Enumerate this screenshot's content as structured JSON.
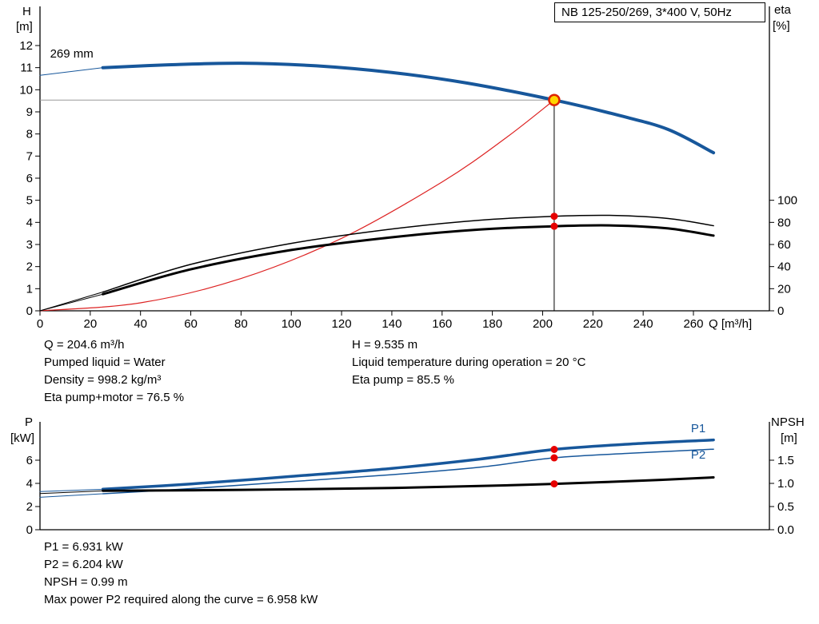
{
  "title_box": "NB 125-250/269, 3*400 V, 50Hz",
  "colors": {
    "curve_blue": "#17579b",
    "curve_black": "#000000",
    "system_red": "#dd2222",
    "marker_red": "#e60000",
    "duty_fill": "#ffd500",
    "duty_stroke": "#dd2200",
    "ref_gray": "#999999"
  },
  "readouts_top_left": [
    "Q = 204.6 m³/h",
    "Pumped liquid = Water",
    "Density = 998.2 kg/m³",
    "Eta pump+motor = 76.5 %"
  ],
  "readouts_top_right": [
    "H = 9.535 m",
    "Liquid temperature during operation = 20 °C",
    "Eta pump = 85.5 %"
  ],
  "readouts_bottom": [
    "P1 = 6.931 kW",
    "P2 = 6.204 kW",
    "NPSH = 0.99 m",
    "Max power P2 required along the curve = 6.958 kW"
  ],
  "chart_data": [
    {
      "type": "line",
      "name": "hq-eta-chart",
      "title": "NB 125-250/269, 3*400 V, 50Hz",
      "impeller_label": "269 mm",
      "x": {
        "label": "Q [m³/h]",
        "min": 0,
        "max": 290,
        "decimals": 0,
        "ticks": [
          0,
          20,
          40,
          60,
          80,
          100,
          120,
          140,
          160,
          180,
          200,
          220,
          240,
          260
        ]
      },
      "y_left": {
        "label_lines": [
          "H",
          "[m]"
        ],
        "min": 0,
        "max": 12,
        "decimals": 0,
        "ticks": [
          0,
          1,
          2,
          3,
          4,
          5,
          6,
          7,
          8,
          9,
          10,
          11,
          12
        ]
      },
      "y_right": {
        "label_lines": [
          "eta",
          "[%]"
        ],
        "min": 0,
        "max": 100,
        "decimals": 0,
        "ticks": [
          0,
          20,
          40,
          60,
          80,
          100
        ]
      },
      "duty_point": {
        "Q": "204.6 m³/h",
        "H": "9.535 m",
        "eta_pump": "85.5 %",
        "eta_pump_motor": "76.5 %"
      },
      "ref_lines": [
        {
          "type": "horizontal",
          "axis": "left",
          "value": 9.535,
          "to_q": 204.6,
          "color": "#999999",
          "width": 1
        },
        {
          "type": "vertical",
          "axis": "left",
          "q": 204.6,
          "to_value": 9.535,
          "color": "#000000",
          "width": 1
        }
      ],
      "series": [
        {
          "name": "system-curve",
          "axis": "left",
          "color": "#dd2222",
          "width": 1.2,
          "points": [
            [
              0,
              0
            ],
            [
              40,
              0.36
            ],
            [
              80,
              1.46
            ],
            [
              120,
              3.28
            ],
            [
              160,
              5.83
            ],
            [
              185,
              7.79
            ],
            [
              204.6,
              9.535
            ]
          ]
        },
        {
          "name": "pump-curve-leadin",
          "axis": "left",
          "color": "#17579b",
          "width": 1,
          "points": [
            [
              0,
              10.65
            ],
            [
              25,
              11.0
            ]
          ]
        },
        {
          "name": "pump-curve-269mm",
          "axis": "left",
          "color": "#17579b",
          "width": 4,
          "points": [
            [
              25,
              11.0
            ],
            [
              50,
              11.12
            ],
            [
              80,
              11.2
            ],
            [
              110,
              11.08
            ],
            [
              140,
              10.78
            ],
            [
              170,
              10.3
            ],
            [
              204.6,
              9.535
            ],
            [
              230,
              8.85
            ],
            [
              250,
              8.2
            ],
            [
              268,
              7.15
            ]
          ]
        },
        {
          "name": "eta-pump-leadin",
          "axis": "right",
          "color": "#000000",
          "width": 1,
          "points": [
            [
              0,
              0
            ],
            [
              25,
              17
            ]
          ]
        },
        {
          "name": "eta-pump-curve",
          "axis": "right",
          "color": "#000000",
          "width": 1.5,
          "points": [
            [
              25,
              17
            ],
            [
              60,
              42
            ],
            [
              100,
              61
            ],
            [
              140,
              74
            ],
            [
              175,
              82
            ],
            [
              204.6,
              85.5
            ],
            [
              228,
              86.3
            ],
            [
              250,
              83.5
            ],
            [
              268,
              77
            ]
          ]
        },
        {
          "name": "eta-pump-motor-leadin",
          "axis": "right",
          "color": "#000000",
          "width": 1,
          "points": [
            [
              0,
              0
            ],
            [
              25,
              15
            ]
          ]
        },
        {
          "name": "eta-pump-motor-curve",
          "axis": "right",
          "color": "#000000",
          "width": 3,
          "points": [
            [
              25,
              15
            ],
            [
              60,
              37.5
            ],
            [
              100,
              55
            ],
            [
              140,
              66.5
            ],
            [
              175,
              73.5
            ],
            [
              204.6,
              76.5
            ],
            [
              228,
              77.2
            ],
            [
              250,
              74.5
            ],
            [
              268,
              68
            ]
          ]
        }
      ],
      "markers": [
        {
          "name": "duty-point",
          "q": 204.6,
          "value": 9.535,
          "axis": "left",
          "r": 6.5,
          "fill": "#ffd500",
          "stroke": "#dd2200",
          "stroke_width": 2.5
        },
        {
          "name": "eta-pump-point",
          "q": 204.6,
          "value": 85.5,
          "axis": "right",
          "r": 4.5,
          "fill": "#e60000",
          "stroke": "none",
          "stroke_width": 0
        },
        {
          "name": "eta-pump-motor-point",
          "q": 204.6,
          "value": 76.5,
          "axis": "right",
          "r": 4.5,
          "fill": "#e60000",
          "stroke": "none",
          "stroke_width": 0
        }
      ],
      "annotations": [
        {
          "name": "impeller-size-label",
          "text": "269 mm",
          "q": 4,
          "value": 11.45,
          "axis": "left",
          "color": "#000000",
          "anchor": "start"
        }
      ]
    },
    {
      "type": "line",
      "name": "power-npsh-chart",
      "x": {
        "label": "",
        "min": 0,
        "max": 290,
        "decimals": 0,
        "ticks": []
      },
      "y_left": {
        "label_lines": [
          "P",
          "[kW]"
        ],
        "min": 0,
        "max": 6,
        "decimals": 0,
        "ticks": [
          0,
          2,
          4,
          6
        ]
      },
      "y_right": {
        "label_lines": [
          "NPSH",
          "[m]"
        ],
        "min": 0,
        "max": 1.5,
        "decimals": 1,
        "ticks": [
          0,
          0.5,
          1,
          1.5
        ]
      },
      "ref_lines": [],
      "series": [
        {
          "name": "p1-leadin",
          "axis": "left",
          "color": "#17579b",
          "width": 1,
          "points": [
            [
              0,
              3.3
            ],
            [
              25,
              3.5
            ]
          ]
        },
        {
          "name": "p1-curve",
          "axis": "left",
          "color": "#17579b",
          "width": 3.5,
          "points": [
            [
              25,
              3.5
            ],
            [
              60,
              3.95
            ],
            [
              100,
              4.6
            ],
            [
              140,
              5.3
            ],
            [
              175,
              6.1
            ],
            [
              204.6,
              6.931
            ],
            [
              235,
              7.4
            ],
            [
              268,
              7.75
            ]
          ]
        },
        {
          "name": "p2-leadin",
          "axis": "left",
          "color": "#17579b",
          "width": 1,
          "points": [
            [
              0,
              2.8
            ],
            [
              25,
              3.1
            ]
          ]
        },
        {
          "name": "p2-curve",
          "axis": "left",
          "color": "#17579b",
          "width": 1.5,
          "points": [
            [
              25,
              3.1
            ],
            [
              60,
              3.55
            ],
            [
              100,
              4.15
            ],
            [
              140,
              4.75
            ],
            [
              175,
              5.4
            ],
            [
              204.6,
              6.204
            ],
            [
              235,
              6.6
            ],
            [
              268,
              6.95
            ]
          ]
        },
        {
          "name": "npsh-leadin",
          "axis": "right",
          "color": "#000000",
          "width": 1,
          "points": [
            [
              0,
              0.78
            ],
            [
              25,
              0.84
            ]
          ]
        },
        {
          "name": "npsh-curve",
          "axis": "right",
          "color": "#000000",
          "width": 3,
          "points": [
            [
              25,
              0.84
            ],
            [
              80,
              0.86
            ],
            [
              140,
              0.9
            ],
            [
              180,
              0.95
            ],
            [
              204.6,
              0.99
            ],
            [
              240,
              1.06
            ],
            [
              268,
              1.13
            ]
          ]
        }
      ],
      "markers": [
        {
          "name": "p1-point",
          "q": 204.6,
          "value": 6.931,
          "axis": "left",
          "r": 4.5,
          "fill": "#e60000",
          "stroke": "none",
          "stroke_width": 0
        },
        {
          "name": "p2-point",
          "q": 204.6,
          "value": 6.204,
          "axis": "left",
          "r": 4.5,
          "fill": "#e60000",
          "stroke": "none",
          "stroke_width": 0
        },
        {
          "name": "npsh-point",
          "q": 204.6,
          "value": 0.99,
          "axis": "right",
          "r": 4.5,
          "fill": "#e60000",
          "stroke": "none",
          "stroke_width": 0
        }
      ],
      "annotations": [
        {
          "name": "p1-label",
          "text": "P1",
          "q": 259,
          "value": 8.4,
          "axis": "left",
          "color": "#17579b",
          "anchor": "start"
        },
        {
          "name": "p2-label",
          "text": "P2",
          "q": 259,
          "value": 6.15,
          "axis": "left",
          "color": "#17579b",
          "anchor": "start"
        }
      ]
    }
  ]
}
